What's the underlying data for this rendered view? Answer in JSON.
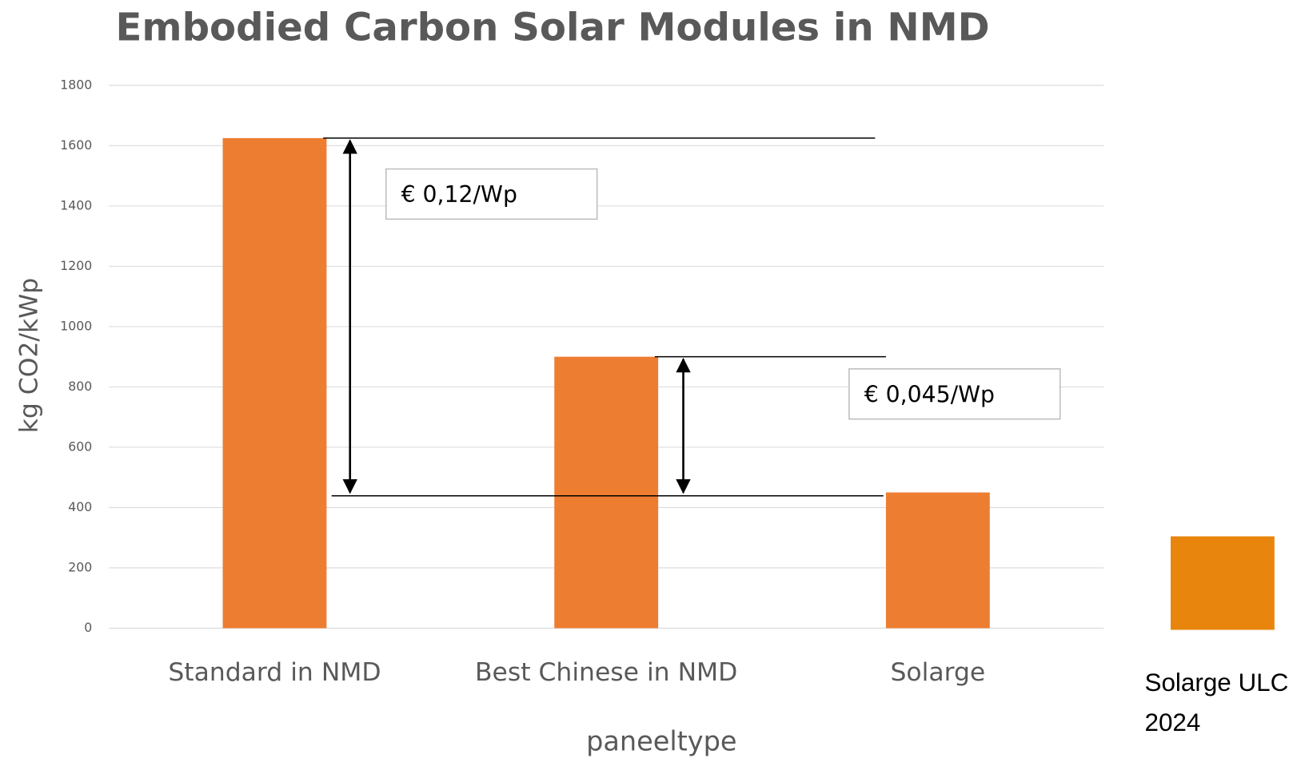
{
  "chart_data": {
    "type": "bar",
    "title": "Embodied Carbon Solar Modules in NMD",
    "y_label": "kg CO2/kWp",
    "x_label": "paneeltype",
    "categories": [
      "Standard in NMD",
      "Best Chinese in NMD",
      "Solarge"
    ],
    "values": [
      1625,
      900,
      450
    ],
    "color": "#ed7d31",
    "ylim": [
      0,
      1800
    ],
    "yticks": [
      0,
      200,
      400,
      600,
      800,
      1000,
      1200,
      1400,
      1600,
      1800
    ],
    "grid": true,
    "annotations": [
      "€ 0,12/Wp",
      "€ 0,045/Wp"
    ],
    "extra_bar": {
      "label_lines": [
        "Solarge ULC",
        "2024"
      ],
      "value": 310,
      "color": "#e8850c"
    }
  }
}
